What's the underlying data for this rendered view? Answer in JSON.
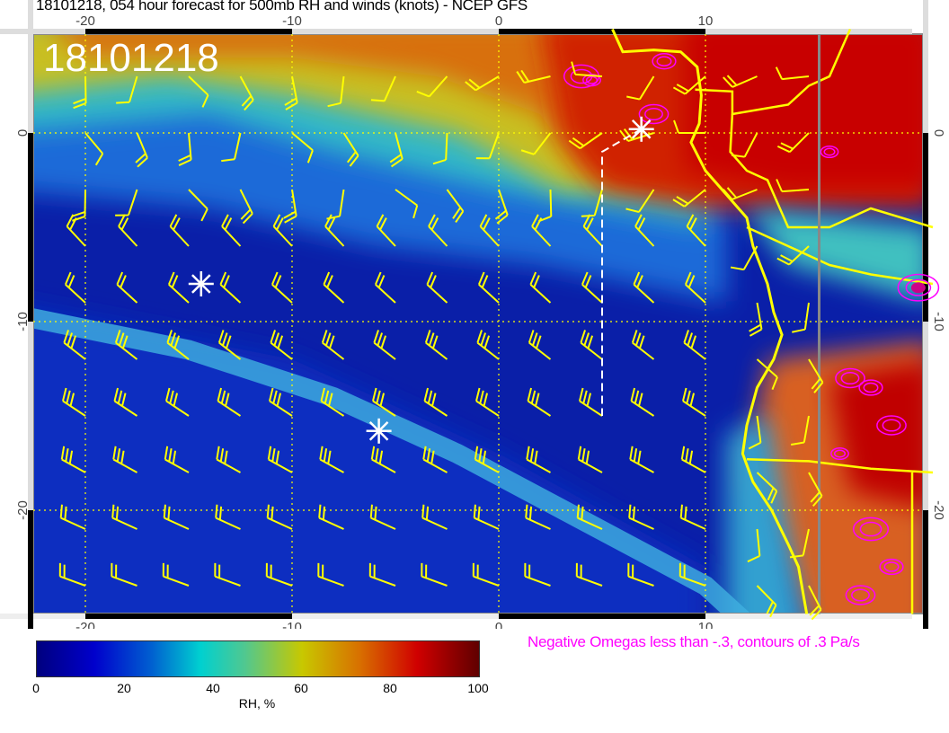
{
  "title": "18101218, 054 hour forecast for 500mb RH and winds (knots) - NCEP GFS",
  "datestamp": "18101218",
  "map": {
    "lon_range": [
      -22.6,
      20.5
    ],
    "lat_range": [
      -25.5,
      5.2
    ],
    "lon_ticks": [
      "-20",
      "-10",
      "0",
      "10"
    ],
    "lat_ticks": [
      "0",
      "-10",
      "-20"
    ],
    "field": "500mb RH",
    "wind_barb_color": "#ffff00",
    "coastline_color": "#ffff00",
    "omega_contour_color": "#ff00ff",
    "markers": [
      {
        "lon": -14.4,
        "lat": -8.0
      },
      {
        "lon": -5.8,
        "lat": -15.8
      },
      {
        "lon": 6.9,
        "lat": 0.2
      }
    ],
    "track": [
      [
        6.9,
        0.2
      ],
      [
        5.0,
        -1.0
      ],
      [
        5.0,
        -10.0
      ],
      [
        5.0,
        -15.0
      ]
    ]
  },
  "omega_note": "Negative Omegas less than -.3, contours of .3 Pa/s",
  "colorbar": {
    "label": "RH, %",
    "ticks": [
      "0",
      "20",
      "40",
      "60",
      "80",
      "100"
    ],
    "range": [
      0,
      100
    ]
  }
}
